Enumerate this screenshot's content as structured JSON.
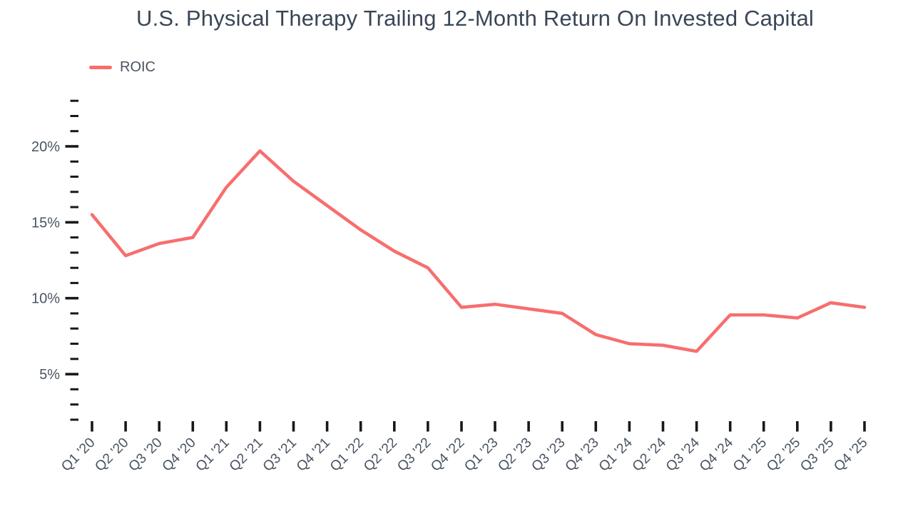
{
  "title": "U.S. Physical Therapy Trailing 12-Month Return On Invested Capital",
  "legend": {
    "items": [
      {
        "label": "ROIC",
        "color": "#F76E6E"
      }
    ]
  },
  "colors": {
    "background": "#FFFFFF",
    "line": "#F76E6E",
    "title_text": "#3A4657",
    "axis_label_text": "#4A5462",
    "tick_mark": "#15191E"
  },
  "chart_data": {
    "type": "line",
    "title": "U.S. Physical Therapy Trailing 12-Month Return On Invested Capital",
    "categories": [
      "Q1 '20",
      "Q2 '20",
      "Q3 '20",
      "Q4 '20",
      "Q1 '21",
      "Q2 '21",
      "Q3 '21",
      "Q4 '21",
      "Q1 '22",
      "Q2 '22",
      "Q3 '22",
      "Q4 '22",
      "Q1 '23",
      "Q2 '23",
      "Q3 '23",
      "Q4 '23",
      "Q1 '24",
      "Q2 '24",
      "Q3 '24",
      "Q4 '24",
      "Q1 '25",
      "Q2 '25",
      "Q3 '25",
      "Q4 '25"
    ],
    "series": [
      {
        "name": "ROIC",
        "color": "#F76E6E",
        "values": [
          15.5,
          12.8,
          13.6,
          14.0,
          17.3,
          19.7,
          17.7,
          16.1,
          14.5,
          13.1,
          12.0,
          9.4,
          9.6,
          9.3,
          9.0,
          7.6,
          7.0,
          6.9,
          6.5,
          8.9,
          8.9,
          8.7,
          9.7,
          9.4
        ]
      }
    ],
    "xlabel": "",
    "ylabel": "",
    "y_unit": "%",
    "y_major_ticks": [
      5,
      10,
      15,
      20
    ],
    "y_minor_tick_step": 1,
    "y_tick_range": [
      2,
      23
    ],
    "ylim": [
      1.5,
      23.5
    ],
    "legend_position": "top-left",
    "grid": false
  }
}
